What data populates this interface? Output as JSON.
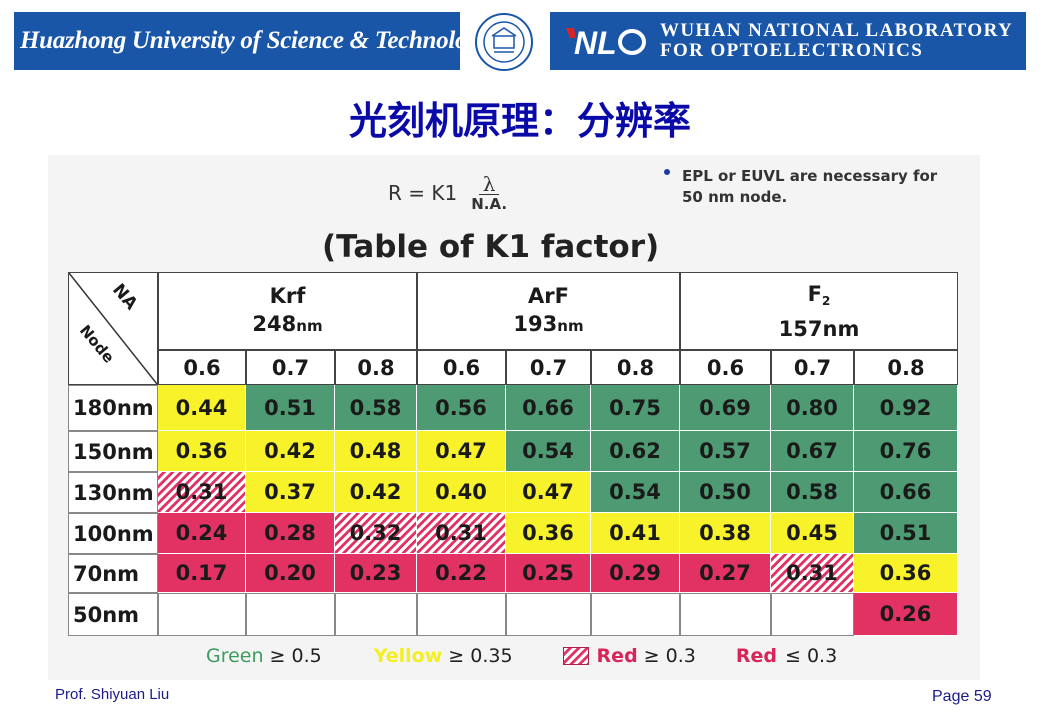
{
  "header": {
    "university": "Huazhong University of Science & Technology",
    "lab_line1": "WUHAN NATIONAL LABORATORY",
    "lab_line2": "FOR OPTOELECTRONICS",
    "lab_logo_text": "NL",
    "brand_color": "#1a56a8"
  },
  "title": "光刻机原理：分辨率",
  "formula": {
    "lhs": "R = K1",
    "numerator": "λ",
    "denominator": "N.A."
  },
  "note": {
    "line1": "EPL or EUVL are necessary for",
    "line2": "50 nm node."
  },
  "table": {
    "title": "(Table of K1 factor)",
    "corner_top": "NA",
    "corner_bottom": "Node",
    "groups": [
      {
        "name": "Krf",
        "wavelength": "248",
        "unit": "nm"
      },
      {
        "name": "ArF",
        "wavelength": "193",
        "unit": "nm"
      },
      {
        "name": "F",
        "subscript": "2",
        "wavelength": "157nm"
      }
    ],
    "na_values": [
      "0.6",
      "0.7",
      "0.8",
      "0.6",
      "0.7",
      "0.8",
      "0.6",
      "0.7",
      "0.8"
    ],
    "rows": [
      {
        "node": "180nm",
        "values": [
          "0.44",
          "0.51",
          "0.58",
          "0.56",
          "0.66",
          "0.75",
          "0.69",
          "0.80",
          "0.92"
        ],
        "colors": [
          "y",
          "g",
          "g",
          "g",
          "g",
          "g",
          "g",
          "g",
          "g"
        ]
      },
      {
        "node": "150nm",
        "values": [
          "0.36",
          "0.42",
          "0.48",
          "0.47",
          "0.54",
          "0.62",
          "0.57",
          "0.67",
          "0.76"
        ],
        "colors": [
          "y",
          "y",
          "y",
          "y",
          "g",
          "g",
          "g",
          "g",
          "g"
        ]
      },
      {
        "node": "130nm",
        "values": [
          "0.31",
          "0.37",
          "0.42",
          "0.40",
          "0.47",
          "0.54",
          "0.50",
          "0.58",
          "0.66"
        ],
        "colors": [
          "h",
          "y",
          "y",
          "y",
          "y",
          "g",
          "g",
          "g",
          "g"
        ]
      },
      {
        "node": "100nm",
        "values": [
          "0.24",
          "0.28",
          "0.32",
          "0.31",
          "0.36",
          "0.41",
          "0.38",
          "0.45",
          "0.51"
        ],
        "colors": [
          "r",
          "r",
          "h",
          "h",
          "y",
          "y",
          "y",
          "y",
          "g"
        ]
      },
      {
        "node": "70nm",
        "values": [
          "0.17",
          "0.20",
          "0.23",
          "0.22",
          "0.25",
          "0.29",
          "0.27",
          "0.31",
          "0.36"
        ],
        "colors": [
          "r",
          "r",
          "r",
          "r",
          "r",
          "r",
          "r",
          "h",
          "y"
        ]
      },
      {
        "node": "50nm",
        "values": [
          "",
          "",
          "",
          "",
          "",
          "",
          "",
          "",
          "0.26"
        ],
        "colors": [
          "e",
          "e",
          "e",
          "e",
          "e",
          "e",
          "e",
          "e",
          "r"
        ]
      }
    ]
  },
  "legend": {
    "green": "Green",
    "green_val": "≥ 0.5",
    "yellow": "Yellow",
    "yellow_val": "≥ 0.35",
    "red_hatched": "Red",
    "red_hatched_val": "≥ 0.3",
    "red": "Red",
    "red_val": "≤ 0.3"
  },
  "footer": {
    "author": "Prof. Shiyuan Liu",
    "page": "Page 59"
  }
}
